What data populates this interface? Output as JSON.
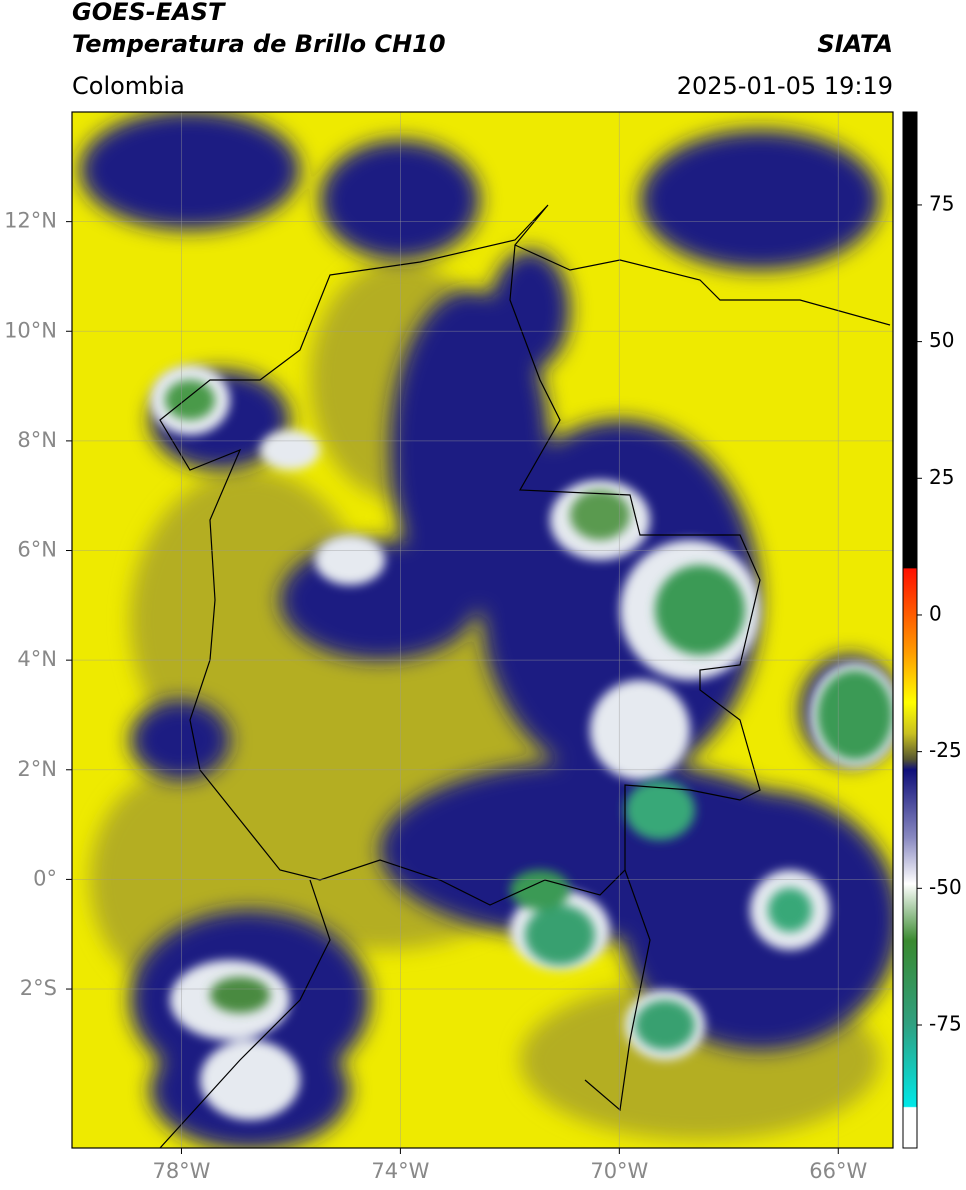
{
  "header": {
    "satellite": "GOES-EAST",
    "product": "Temperatura de Brillo CH10",
    "region": "Colombia",
    "source": "SIATA",
    "datetime": "2025-01-05 19:19"
  },
  "map": {
    "lon_lim": [
      -80,
      -65
    ],
    "lat_lim": [
      -4.9,
      14
    ],
    "lon_ticks": [
      {
        "value": -78,
        "label": "78°W"
      },
      {
        "value": -74,
        "label": "74°W"
      },
      {
        "value": -70,
        "label": "70°W"
      },
      {
        "value": -66,
        "label": "66°W"
      }
    ],
    "lat_ticks": [
      {
        "value": 12,
        "label": "12°N"
      },
      {
        "value": 10,
        "label": "10°N"
      },
      {
        "value": 8,
        "label": "8°N"
      },
      {
        "value": 6,
        "label": "6°N"
      },
      {
        "value": 4,
        "label": "4°N"
      },
      {
        "value": 2,
        "label": "2°N"
      },
      {
        "value": 0,
        "label": "0°"
      },
      {
        "value": -2,
        "label": "2°S"
      }
    ],
    "colorbar": {
      "lim": [
        -97.5,
        92
      ],
      "ticks": [
        75,
        50,
        25,
        0,
        -25,
        -50,
        -75
      ]
    }
  }
}
